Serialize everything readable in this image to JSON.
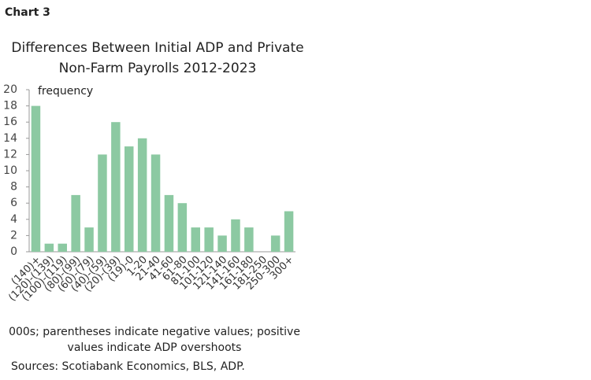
{
  "header": "Chart 3",
  "chart_data": {
    "type": "bar",
    "title": [
      "Differences Between Initial ADP and Private",
      "Non-Farm Payrolls 2012-2023"
    ],
    "y_label": "frequency",
    "categories": [
      "(140)+",
      "(120)-(139)",
      "(100)-(119)",
      "(80)-(99)",
      "(60)-(79)",
      "(40)-(59)",
      "(20)-(39)",
      "(19)-0",
      "1-20",
      "21-40",
      "41-60",
      "61-80",
      "81-100",
      "101-120",
      "121-140",
      "141-160",
      "161-180",
      "181-250",
      "250-300",
      "300+"
    ],
    "values": [
      18,
      1,
      1,
      7,
      3,
      12,
      16,
      13,
      14,
      12,
      7,
      6,
      3,
      3,
      2,
      4,
      3,
      0,
      2,
      5
    ],
    "color": "#8cc9a2",
    "ylim": [
      0,
      20
    ],
    "yticks": [
      0,
      2,
      4,
      6,
      8,
      10,
      12,
      14,
      16,
      18,
      20
    ],
    "grid": false,
    "notes": [
      "000s; parentheses indicate negative values; positive",
      "values indicate ADP overshoots"
    ],
    "source": "Sources: Scotiabank Economics, BLS, ADP."
  }
}
